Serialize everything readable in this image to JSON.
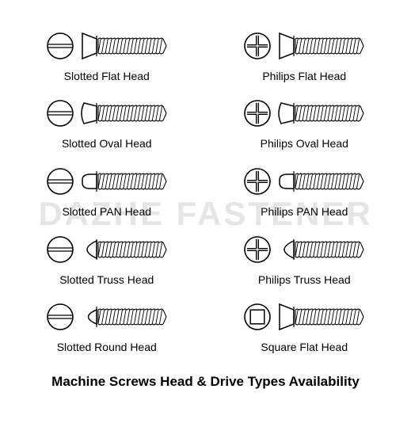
{
  "title": "Machine Screws Head & Drive Types Availability",
  "watermark": "DAZHE FASTENER",
  "stroke_color": "#000000",
  "background_color": "#ffffff",
  "label_fontsize": 14,
  "title_fontsize": 17,
  "screws": [
    {
      "drive": "slotted",
      "head": "flat",
      "label": "Slotted Flat Head"
    },
    {
      "drive": "philips",
      "head": "flat",
      "label": "Philips Flat Head"
    },
    {
      "drive": "slotted",
      "head": "oval",
      "label": "Slotted Oval Head"
    },
    {
      "drive": "philips",
      "head": "oval",
      "label": "Philips Oval Head"
    },
    {
      "drive": "slotted",
      "head": "pan",
      "label": "Slotted PAN Head"
    },
    {
      "drive": "philips",
      "head": "pan",
      "label": "Philips PAN Head"
    },
    {
      "drive": "slotted",
      "head": "truss",
      "label": "Slotted Truss Head"
    },
    {
      "drive": "philips",
      "head": "truss",
      "label": "Philips Truss Head"
    },
    {
      "drive": "slotted",
      "head": "round",
      "label": "Slotted Round Head"
    },
    {
      "drive": "square",
      "head": "flat",
      "label": "Square Flat Head"
    }
  ],
  "icon_sizes": {
    "drive_d": 36,
    "screw_w": 110,
    "screw_h": 40
  },
  "thread_count": 18
}
